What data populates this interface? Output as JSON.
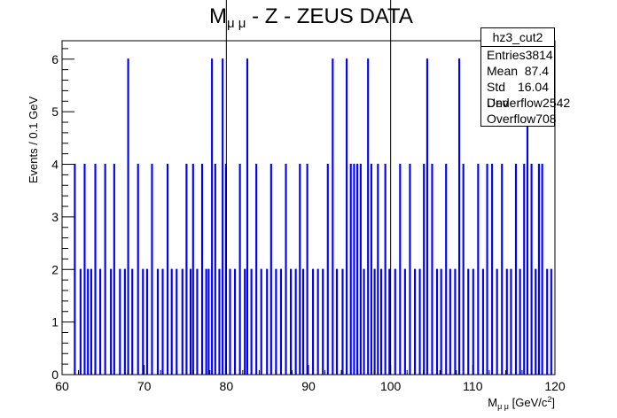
{
  "chart_data": {
    "type": "bar",
    "title": "M",
    "title_sub": "μ μ",
    "title_rest": " - Z - ZEUS DATA",
    "xlabel_main": "M",
    "xlabel_sub": "μ μ",
    "xlabel_unit": " [GeV/c",
    "xlabel_sup": "2",
    "xlabel_close": "]",
    "ylabel": "Events / 0.1 GeV",
    "xlim": [
      60,
      120
    ],
    "ylim": [
      0,
      6.35
    ],
    "xticks": [
      "60",
      "70",
      "80",
      "90",
      "100",
      "110",
      "120"
    ],
    "yticks": [
      "0",
      "1",
      "2",
      "3",
      "4",
      "5",
      "6"
    ],
    "bin_width": 0.1,
    "vertical_lines": [
      80,
      100
    ],
    "x": [
      61.5,
      62.2,
      62.7,
      63.1,
      63.5,
      64.0,
      64.6,
      65.2,
      65.9,
      66.3,
      67.0,
      67.6,
      68.0,
      68.5,
      69.2,
      69.8,
      70.3,
      70.9,
      71.6,
      72.2,
      72.8,
      73.3,
      73.9,
      74.6,
      75.1,
      75.6,
      75.9,
      76.4,
      77.0,
      77.5,
      77.8,
      78.2,
      78.6,
      79.1,
      79.5,
      79.9,
      80.4,
      81.0,
      81.6,
      82.2,
      82.5,
      83.0,
      83.6,
      84.2,
      84.9,
      85.4,
      86.0,
      86.6,
      87.2,
      87.8,
      88.4,
      88.9,
      89.3,
      89.8,
      90.5,
      91.1,
      91.7,
      92.3,
      92.9,
      93.4,
      94.1,
      94.6,
      95.1,
      95.5,
      95.9,
      96.3,
      96.7,
      97.2,
      97.6,
      98.0,
      98.4,
      98.8,
      99.3,
      99.8,
      100.5,
      101.1,
      101.7,
      102.3,
      102.9,
      103.5,
      104.0,
      104.4,
      105.0,
      105.6,
      106.1,
      106.7,
      107.2,
      107.8,
      108.3,
      108.8,
      109.4,
      110.0,
      110.6,
      111.2,
      111.7,
      112.3,
      112.9,
      113.5,
      114.1,
      114.6,
      115.2,
      115.7,
      116.2,
      116.6,
      117.1,
      117.6,
      118.0,
      118.4,
      119.0,
      119.5
    ],
    "values": [
      4,
      2,
      4,
      2,
      2,
      4,
      2,
      4,
      2,
      4,
      2,
      2,
      6,
      2,
      4,
      2,
      2,
      4,
      2,
      2,
      4,
      2,
      2,
      2,
      4,
      2,
      4,
      2,
      4,
      2,
      2,
      6,
      4,
      2,
      6,
      4,
      2,
      2,
      4,
      2,
      6,
      2,
      4,
      2,
      2,
      4,
      2,
      2,
      4,
      2,
      2,
      4,
      2,
      4,
      2,
      2,
      2,
      4,
      6,
      2,
      2,
      6,
      4,
      4,
      4,
      4,
      2,
      6,
      4,
      2,
      4,
      2,
      4,
      2,
      2,
      4,
      2,
      4,
      2,
      2,
      4,
      6,
      4,
      2,
      2,
      4,
      2,
      2,
      6,
      4,
      2,
      2,
      4,
      2,
      4,
      4,
      2,
      4,
      2,
      2,
      4,
      2,
      4,
      6,
      4,
      2,
      4,
      4,
      2,
      2
    ],
    "colors": {
      "histogram": "#0000ff",
      "axes": "#000000",
      "background": "#ffffff"
    }
  },
  "stats": {
    "name": "hz3_cut2",
    "rows": [
      {
        "label": "Entries",
        "value": "3814"
      },
      {
        "label": "Mean",
        "value": "87.4"
      },
      {
        "label": "Std Dev",
        "value": "16.04"
      },
      {
        "label": "Underflow",
        "value": "2542"
      },
      {
        "label": "Overflow",
        "value": "708"
      }
    ]
  }
}
